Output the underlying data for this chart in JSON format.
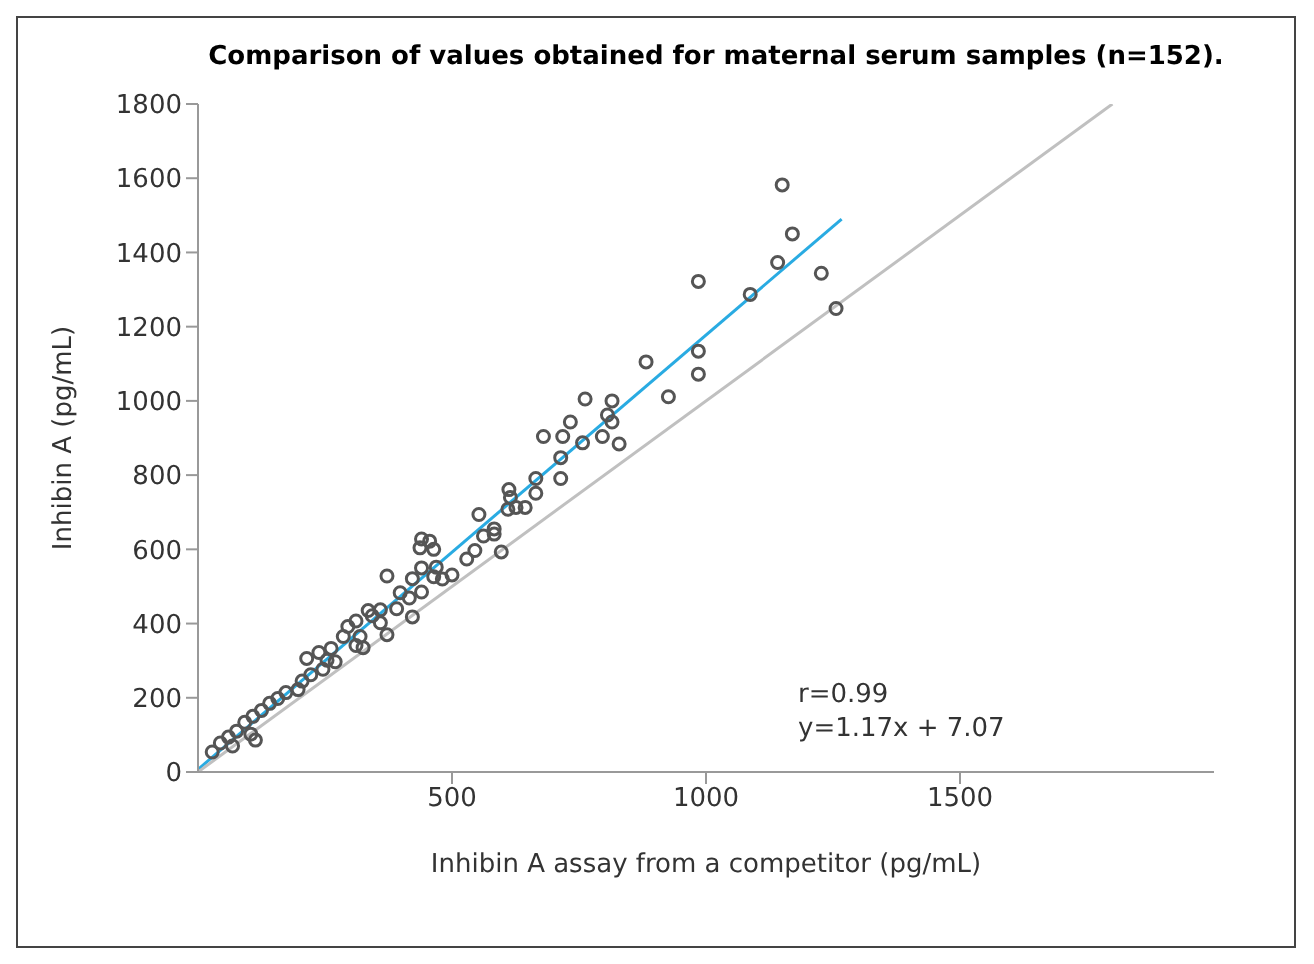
{
  "chart_data": {
    "type": "scatter",
    "title": "Comparison of values obtained for maternal serum samples (n=152).",
    "xlabel": "Inhibin A assay from a competitor (pg/mL)",
    "ylabel": "Inhibin A (pg/mL)",
    "xlim": [
      0,
      2000
    ],
    "ylim": [
      0,
      1800
    ],
    "xticks": [
      500,
      1000,
      1500
    ],
    "yticks": [
      0,
      200,
      400,
      600,
      800,
      1000,
      1200,
      1400,
      1600,
      1800
    ],
    "grid": false,
    "annotations": [
      "r=0.99",
      "y=1.17x + 7.07"
    ],
    "series": [
      {
        "marker": "circle",
        "color": "#555555",
        "x": [
          1150,
          1170,
          1141,
          1227,
          985,
          1087,
          1256,
          985,
          882,
          985,
          926,
          762,
          815,
          806,
          733,
          815,
          680,
          718,
          796,
          757,
          829,
          714,
          665,
          714,
          612,
          644,
          610,
          553,
          583,
          562,
          597,
          529,
          440,
          456,
          464,
          437,
          500,
          372,
          440,
          464,
          422,
          398,
          440,
          422,
          359,
          359,
          372,
          335,
          311,
          295,
          286,
          319,
          325,
          311,
          262,
          238,
          214,
          254,
          270,
          246,
          222,
          205,
          197,
          173,
          157,
          141,
          125,
          108,
          92,
          104,
          113,
          76,
          60,
          44,
          28,
          68,
          665,
          626,
          615,
          583,
          545,
          469,
          481,
          416,
          391,
          343
        ],
        "values": [
          1582,
          1450,
          1373,
          1344,
          1322,
          1287,
          1249,
          1134,
          1105,
          1072,
          1011,
          1005,
          1000,
          962,
          943,
          943,
          904,
          904,
          904,
          887,
          884,
          847,
          791,
          791,
          761,
          713,
          708,
          694,
          655,
          636,
          593,
          574,
          628,
          622,
          600,
          604,
          531,
          528,
          550,
          526,
          521,
          483,
          485,
          418,
          437,
          402,
          370,
          435,
          407,
          392,
          365,
          365,
          335,
          341,
          333,
          322,
          306,
          301,
          297,
          277,
          262,
          245,
          222,
          214,
          198,
          185,
          166,
          150,
          134,
          102,
          86,
          110,
          94,
          78,
          54,
          70,
          751,
          713,
          740,
          641,
          597,
          552,
          520,
          469,
          440,
          421
        ]
      },
      {
        "type": "line",
        "marker": "none",
        "color": "#29abe2",
        "x": [
          0,
          1267
        ],
        "values": [
          7,
          1490
        ]
      },
      {
        "type": "line",
        "marker": "none",
        "color": "#c0c0c0",
        "x": [
          0,
          1800
        ],
        "values": [
          0,
          1800
        ]
      }
    ]
  }
}
